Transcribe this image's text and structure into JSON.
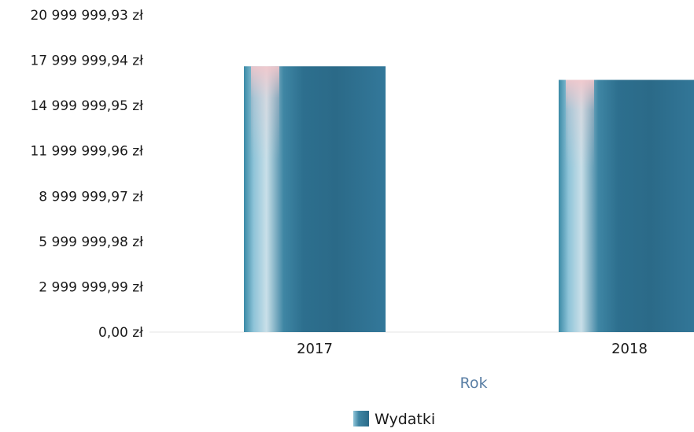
{
  "chart_data": {
    "type": "bar",
    "categories": [
      "2017",
      "2018"
    ],
    "series": [
      {
        "name": "Wydatki",
        "values": [
          17600000,
          16700000
        ]
      }
    ],
    "y_ticks": [
      "0,00 zł",
      "2 999 999,99 zł",
      "5 999 999,98 zł",
      "8 999 999,97 zł",
      "11 999 999,96 zł",
      "14 999 999,95 zł",
      "17 999 999,94 zł",
      "20 999 999,93 zł"
    ],
    "ylim": [
      0,
      20999999.93
    ],
    "xlabel": "Rok",
    "ylabel": "",
    "legend_position": "bottom-center",
    "colors": {
      "bar": "#2f6f8c",
      "bar_highlight": "#f2c4c8",
      "axis_label": "#5a7fa5"
    }
  }
}
